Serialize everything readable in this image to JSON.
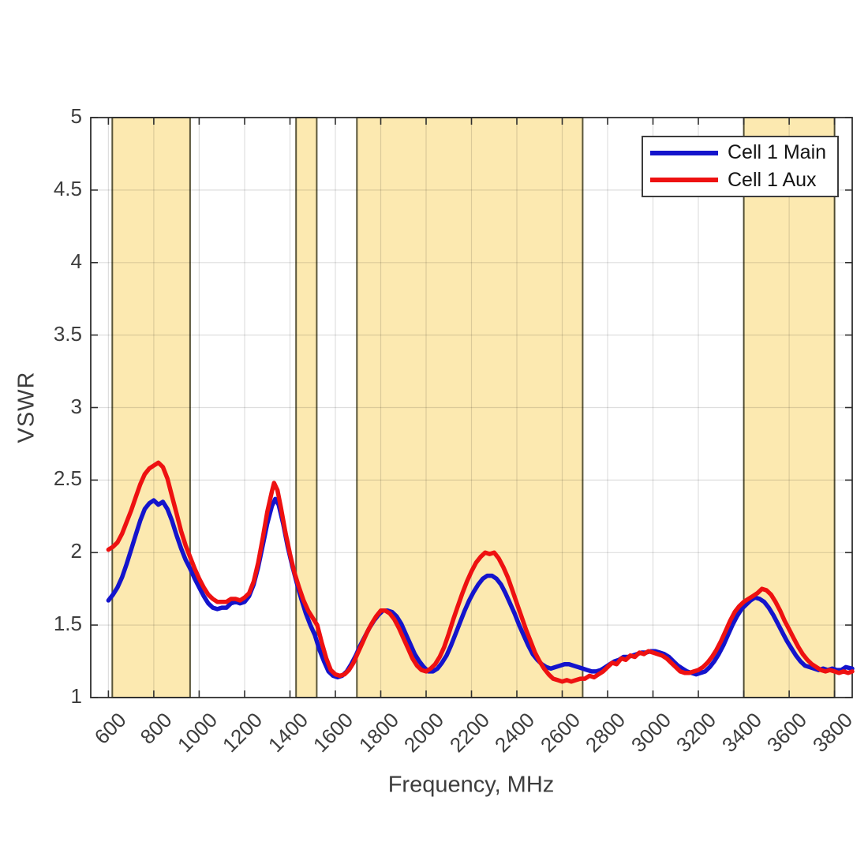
{
  "figure": {
    "background": "#ffffff",
    "axis_color": "#2f2f2f",
    "grid_color": "rgba(0,0,0,0.13)",
    "tick_label_color": "#3d3d3d"
  },
  "legend": {
    "position": "top-right",
    "items": [
      {
        "label": "Cell 1 Main",
        "color": "#1414cc"
      },
      {
        "label": "Cell 1 Aux",
        "color": "#ee1111"
      }
    ]
  },
  "chart_data": {
    "type": "line",
    "title": "",
    "xlabel": "Frequency, MHz",
    "ylabel": "VSWR",
    "xlim": [
      522,
      3878
    ],
    "ylim": [
      1,
      5
    ],
    "grid": true,
    "legend_position": "top-right",
    "xticks": [
      600,
      800,
      1000,
      1200,
      1400,
      1600,
      1800,
      2000,
      2200,
      2400,
      2600,
      2800,
      3000,
      3200,
      3400,
      3600,
      3800
    ],
    "yticks": [
      1,
      1.5,
      2,
      2.5,
      3,
      3.5,
      4,
      4.5,
      5
    ],
    "ytick_labels": [
      "1",
      "1.5",
      "2",
      "2.5",
      "3",
      "3.5",
      "4",
      "4.5",
      "5"
    ],
    "shaded_bands_mhz": [
      [
        617,
        960
      ],
      [
        1427,
        1518
      ],
      [
        1695,
        2690
      ],
      [
        3400,
        3800
      ]
    ],
    "band_fill": "#fce9b0",
    "band_edge": "#59553a",
    "series": [
      {
        "name": "Cell 1 Main",
        "color": "#1414cc",
        "line_width": 5.5,
        "x": [
          600,
          620,
          640,
          660,
          680,
          700,
          720,
          740,
          760,
          780,
          800,
          820,
          840,
          860,
          880,
          900,
          920,
          940,
          960,
          980,
          1000,
          1020,
          1040,
          1060,
          1080,
          1100,
          1120,
          1140,
          1160,
          1180,
          1200,
          1220,
          1240,
          1260,
          1280,
          1300,
          1320,
          1335,
          1350,
          1370,
          1390,
          1410,
          1430,
          1450,
          1470,
          1490,
          1510,
          1530,
          1550,
          1570,
          1590,
          1610,
          1630,
          1650,
          1670,
          1690,
          1710,
          1730,
          1750,
          1770,
          1790,
          1810,
          1830,
          1850,
          1870,
          1890,
          1910,
          1930,
          1950,
          1970,
          1990,
          2010,
          2030,
          2050,
          2070,
          2090,
          2110,
          2130,
          2150,
          2170,
          2190,
          2210,
          2230,
          2250,
          2270,
          2290,
          2310,
          2330,
          2350,
          2370,
          2390,
          2410,
          2430,
          2450,
          2470,
          2490,
          2510,
          2530,
          2550,
          2570,
          2590,
          2610,
          2630,
          2650,
          2670,
          2690,
          2710,
          2730,
          2750,
          2770,
          2790,
          2810,
          2830,
          2850,
          2870,
          2890,
          2910,
          2930,
          2950,
          2970,
          2990,
          3010,
          3030,
          3050,
          3070,
          3090,
          3110,
          3130,
          3150,
          3170,
          3190,
          3210,
          3230,
          3250,
          3270,
          3290,
          3310,
          3330,
          3350,
          3370,
          3390,
          3410,
          3430,
          3450,
          3470,
          3490,
          3510,
          3530,
          3550,
          3570,
          3590,
          3610,
          3630,
          3650,
          3670,
          3690,
          3710,
          3730,
          3750,
          3770,
          3790,
          3810,
          3830,
          3850,
          3878
        ],
        "y": [
          1.67,
          1.71,
          1.76,
          1.83,
          1.92,
          2.02,
          2.12,
          2.22,
          2.3,
          2.34,
          2.36,
          2.33,
          2.35,
          2.3,
          2.22,
          2.12,
          2.03,
          1.95,
          1.89,
          1.82,
          1.76,
          1.7,
          1.65,
          1.62,
          1.61,
          1.62,
          1.62,
          1.65,
          1.66,
          1.65,
          1.66,
          1.7,
          1.78,
          1.9,
          2.05,
          2.2,
          2.32,
          2.37,
          2.33,
          2.2,
          2.04,
          1.91,
          1.79,
          1.68,
          1.58,
          1.5,
          1.43,
          1.33,
          1.25,
          1.18,
          1.15,
          1.14,
          1.15,
          1.18,
          1.23,
          1.29,
          1.36,
          1.42,
          1.48,
          1.53,
          1.57,
          1.6,
          1.6,
          1.59,
          1.56,
          1.51,
          1.44,
          1.37,
          1.3,
          1.25,
          1.21,
          1.18,
          1.18,
          1.2,
          1.24,
          1.29,
          1.36,
          1.44,
          1.52,
          1.6,
          1.67,
          1.73,
          1.78,
          1.82,
          1.84,
          1.84,
          1.82,
          1.78,
          1.72,
          1.65,
          1.58,
          1.5,
          1.43,
          1.36,
          1.3,
          1.26,
          1.23,
          1.21,
          1.2,
          1.21,
          1.22,
          1.23,
          1.23,
          1.22,
          1.21,
          1.2,
          1.19,
          1.18,
          1.18,
          1.19,
          1.21,
          1.23,
          1.25,
          1.26,
          1.28,
          1.28,
          1.29,
          1.3,
          1.31,
          1.31,
          1.32,
          1.32,
          1.31,
          1.3,
          1.28,
          1.25,
          1.22,
          1.2,
          1.18,
          1.17,
          1.16,
          1.17,
          1.18,
          1.21,
          1.25,
          1.3,
          1.36,
          1.43,
          1.5,
          1.56,
          1.61,
          1.64,
          1.67,
          1.69,
          1.68,
          1.66,
          1.62,
          1.57,
          1.51,
          1.45,
          1.39,
          1.34,
          1.29,
          1.25,
          1.22,
          1.21,
          1.2,
          1.19,
          1.2,
          1.19,
          1.2,
          1.19,
          1.19,
          1.21,
          1.2
        ]
      },
      {
        "name": "Cell 1 Aux",
        "color": "#ee1111",
        "line_width": 5.5,
        "x": [
          600,
          620,
          640,
          660,
          680,
          700,
          720,
          740,
          760,
          780,
          800,
          820,
          840,
          860,
          880,
          900,
          920,
          940,
          960,
          980,
          1000,
          1020,
          1040,
          1060,
          1080,
          1100,
          1120,
          1140,
          1160,
          1180,
          1200,
          1220,
          1240,
          1260,
          1280,
          1300,
          1320,
          1330,
          1345,
          1360,
          1380,
          1400,
          1420,
          1440,
          1460,
          1480,
          1500,
          1520,
          1540,
          1560,
          1580,
          1600,
          1620,
          1640,
          1660,
          1680,
          1700,
          1720,
          1740,
          1760,
          1780,
          1800,
          1820,
          1840,
          1860,
          1880,
          1900,
          1920,
          1940,
          1960,
          1980,
          2000,
          2020,
          2040,
          2060,
          2080,
          2100,
          2120,
          2140,
          2160,
          2180,
          2200,
          2220,
          2240,
          2260,
          2280,
          2300,
          2320,
          2340,
          2360,
          2380,
          2400,
          2420,
          2440,
          2460,
          2480,
          2500,
          2520,
          2540,
          2560,
          2580,
          2600,
          2620,
          2640,
          2660,
          2680,
          2700,
          2720,
          2740,
          2760,
          2780,
          2800,
          2820,
          2840,
          2860,
          2880,
          2900,
          2920,
          2940,
          2960,
          2980,
          3000,
          3020,
          3040,
          3060,
          3080,
          3100,
          3120,
          3140,
          3160,
          3180,
          3200,
          3220,
          3240,
          3260,
          3280,
          3300,
          3320,
          3340,
          3360,
          3380,
          3400,
          3420,
          3440,
          3460,
          3480,
          3500,
          3520,
          3540,
          3560,
          3580,
          3600,
          3620,
          3640,
          3660,
          3680,
          3700,
          3720,
          3740,
          3760,
          3780,
          3800,
          3820,
          3840,
          3860,
          3878
        ],
        "y": [
          2.02,
          2.04,
          2.07,
          2.13,
          2.21,
          2.29,
          2.38,
          2.47,
          2.54,
          2.58,
          2.6,
          2.62,
          2.59,
          2.51,
          2.39,
          2.27,
          2.15,
          2.05,
          1.97,
          1.89,
          1.82,
          1.76,
          1.71,
          1.68,
          1.66,
          1.66,
          1.66,
          1.68,
          1.68,
          1.67,
          1.69,
          1.72,
          1.8,
          1.93,
          2.1,
          2.28,
          2.42,
          2.48,
          2.43,
          2.31,
          2.14,
          1.99,
          1.86,
          1.76,
          1.67,
          1.6,
          1.55,
          1.5,
          1.38,
          1.27,
          1.19,
          1.16,
          1.15,
          1.16,
          1.19,
          1.24,
          1.31,
          1.38,
          1.45,
          1.51,
          1.56,
          1.6,
          1.6,
          1.58,
          1.54,
          1.48,
          1.41,
          1.34,
          1.27,
          1.22,
          1.19,
          1.18,
          1.2,
          1.23,
          1.28,
          1.35,
          1.44,
          1.54,
          1.63,
          1.72,
          1.8,
          1.87,
          1.93,
          1.97,
          2.0,
          1.99,
          2.0,
          1.96,
          1.9,
          1.83,
          1.74,
          1.65,
          1.56,
          1.47,
          1.39,
          1.31,
          1.25,
          1.2,
          1.16,
          1.13,
          1.12,
          1.11,
          1.12,
          1.11,
          1.12,
          1.13,
          1.13,
          1.15,
          1.14,
          1.16,
          1.18,
          1.21,
          1.24,
          1.23,
          1.27,
          1.26,
          1.29,
          1.28,
          1.31,
          1.3,
          1.32,
          1.31,
          1.3,
          1.29,
          1.27,
          1.24,
          1.21,
          1.18,
          1.17,
          1.17,
          1.18,
          1.19,
          1.21,
          1.24,
          1.28,
          1.33,
          1.39,
          1.46,
          1.53,
          1.59,
          1.63,
          1.66,
          1.68,
          1.7,
          1.72,
          1.75,
          1.74,
          1.71,
          1.66,
          1.6,
          1.53,
          1.47,
          1.41,
          1.35,
          1.3,
          1.26,
          1.23,
          1.21,
          1.19,
          1.18,
          1.19,
          1.18,
          1.17,
          1.18,
          1.17,
          1.18
        ]
      }
    ]
  }
}
